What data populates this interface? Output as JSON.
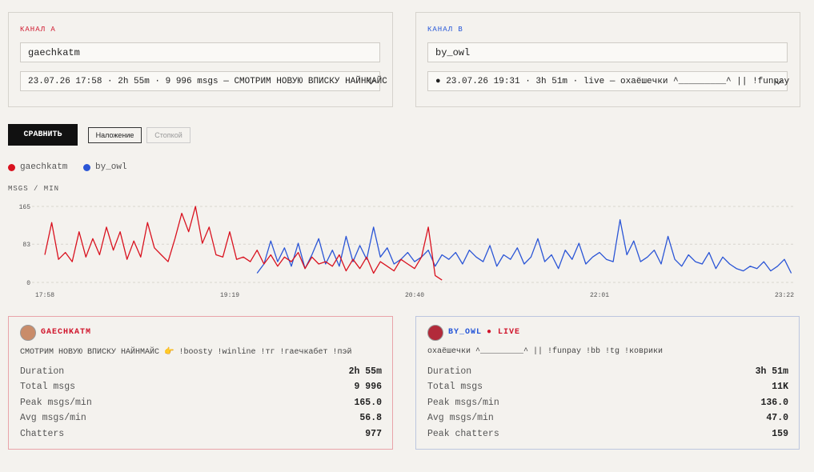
{
  "channel_a": {
    "label": "КАНАЛ A",
    "input": "gaechkatm",
    "select": "23.07.26 17:58 · 2h 55m · 9 996 msgs — СМОТРИМ НОВУЮ ВПИСКУ НАЙНМАЙС"
  },
  "channel_b": {
    "label": "КАНАЛ B",
    "input": "by_owl",
    "select": "● 23.07.26 19:31 · 3h 51m · live — охаёшечки ^_________^ || !funpay"
  },
  "buttons": {
    "compare": "СРАВНИТЬ",
    "overlay": "Наложение",
    "stack": "Стопкой"
  },
  "chart_data": {
    "type": "line",
    "y_label": "MSGS / MIN",
    "grid": true,
    "xlim": [
      "17:58",
      "23:22"
    ],
    "xticks": [
      "17:58",
      "19:19",
      "20:40",
      "22:01",
      "23:22"
    ],
    "ylim": [
      0,
      165
    ],
    "yticks": [
      0,
      83,
      165
    ],
    "series": [
      {
        "name": "gaechkatm",
        "color": "#d9121f",
        "x": [
          "17:58",
          "18:01",
          "18:04",
          "18:07",
          "18:10",
          "18:13",
          "18:16",
          "18:19",
          "18:22",
          "18:25",
          "18:28",
          "18:31",
          "18:34",
          "18:37",
          "18:40",
          "18:43",
          "18:46",
          "18:49",
          "18:52",
          "18:55",
          "18:58",
          "19:01",
          "19:04",
          "19:07",
          "19:10",
          "19:13",
          "19:16",
          "19:19",
          "19:22",
          "19:25",
          "19:28",
          "19:31",
          "19:34",
          "19:37",
          "19:40",
          "19:43",
          "19:46",
          "19:49",
          "19:52",
          "19:55",
          "19:58",
          "20:01",
          "20:04",
          "20:07",
          "20:10",
          "20:13",
          "20:16",
          "20:19",
          "20:22",
          "20:25",
          "20:28",
          "20:31",
          "20:34",
          "20:37",
          "20:40",
          "20:43",
          "20:46",
          "20:49",
          "20:52"
        ],
        "values": [
          60,
          130,
          50,
          65,
          45,
          110,
          55,
          95,
          60,
          120,
          70,
          110,
          50,
          90,
          55,
          130,
          75,
          60,
          45,
          95,
          150,
          110,
          165,
          85,
          120,
          60,
          55,
          110,
          50,
          55,
          45,
          70,
          40,
          60,
          35,
          55,
          45,
          65,
          30,
          55,
          40,
          45,
          35,
          60,
          25,
          50,
          30,
          55,
          20,
          45,
          35,
          25,
          50,
          40,
          30,
          55,
          120,
          15,
          5
        ]
      },
      {
        "name": "by_owl",
        "color": "#2a55d6",
        "x": [
          "19:31",
          "19:34",
          "19:37",
          "19:40",
          "19:43",
          "19:46",
          "19:49",
          "19:52",
          "19:55",
          "19:58",
          "20:01",
          "20:04",
          "20:07",
          "20:10",
          "20:13",
          "20:16",
          "20:19",
          "20:22",
          "20:25",
          "20:28",
          "20:31",
          "20:34",
          "20:37",
          "20:40",
          "20:43",
          "20:46",
          "20:49",
          "20:52",
          "20:55",
          "20:58",
          "21:01",
          "21:04",
          "21:07",
          "21:10",
          "21:13",
          "21:16",
          "21:19",
          "21:22",
          "21:25",
          "21:28",
          "21:31",
          "21:34",
          "21:37",
          "21:40",
          "21:43",
          "21:46",
          "21:49",
          "21:52",
          "21:55",
          "21:58",
          "22:01",
          "22:04",
          "22:07",
          "22:10",
          "22:13",
          "22:16",
          "22:19",
          "22:22",
          "22:25",
          "22:28",
          "22:31",
          "22:34",
          "22:37",
          "22:40",
          "22:43",
          "22:46",
          "22:49",
          "22:52",
          "22:55",
          "22:58",
          "23:01",
          "23:04",
          "23:07",
          "23:10",
          "23:13",
          "23:16",
          "23:19",
          "23:22",
          "23:25"
        ],
        "values": [
          20,
          40,
          90,
          45,
          75,
          35,
          85,
          30,
          60,
          95,
          40,
          70,
          35,
          100,
          45,
          80,
          50,
          120,
          55,
          75,
          40,
          50,
          65,
          45,
          55,
          70,
          35,
          60,
          50,
          65,
          40,
          70,
          55,
          45,
          80,
          35,
          60,
          50,
          75,
          40,
          55,
          95,
          45,
          60,
          30,
          70,
          50,
          85,
          40,
          55,
          65,
          50,
          45,
          136,
          60,
          90,
          45,
          55,
          70,
          40,
          100,
          50,
          35,
          60,
          45,
          40,
          65,
          30,
          55,
          40,
          30,
          25,
          35,
          30,
          45,
          25,
          35,
          50,
          20
        ]
      }
    ]
  },
  "cards": [
    {
      "name": "GAECHKATM",
      "title": "СМОТРИМ НОВУЮ ВПИСКУ НАЙНМАЙС 👉 !boosty !winline !тг !гаечкабет !пэй",
      "rows": [
        {
          "label": "Duration",
          "value": "2h 55m"
        },
        {
          "label": "Total msgs",
          "value": "9 996"
        },
        {
          "label": "Peak msgs/min",
          "value": "165.0"
        },
        {
          "label": "Avg msgs/min",
          "value": "56.8"
        },
        {
          "label": "Chatters",
          "value": "977"
        }
      ]
    },
    {
      "name": "BY_OWL",
      "status": "● LIVE",
      "title": "охаёшечки ^_________^ || !funpay !bb !tg !коврики",
      "rows": [
        {
          "label": "Duration",
          "value": "3h 51m"
        },
        {
          "label": "Total msgs",
          "value": "11K"
        },
        {
          "label": "Peak msgs/min",
          "value": "136.0"
        },
        {
          "label": "Avg msgs/min",
          "value": "47.0"
        },
        {
          "label": "Peak chatters",
          "value": "159"
        }
      ]
    }
  ]
}
